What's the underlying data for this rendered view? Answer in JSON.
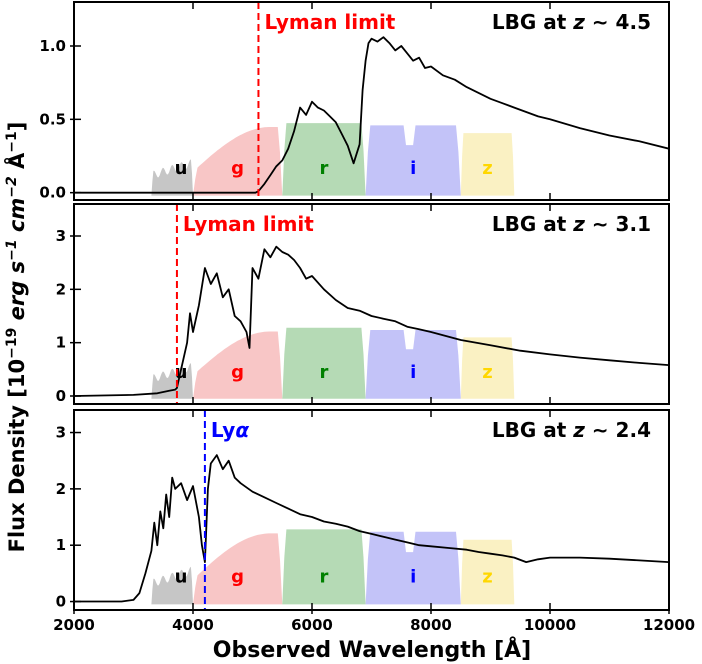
{
  "chart_data": {
    "type": "line",
    "xlabel": "Observed Wavelength [Å]",
    "ylabel": "Flux Density [10⁻¹⁹ erg s⁻¹ cm⁻² Å⁻¹]",
    "xlim": [
      2000,
      12000
    ],
    "x_ticks": [
      2000,
      4000,
      6000,
      8000,
      10000,
      12000
    ],
    "x_tick_labels": [
      "2000",
      "4000",
      "6000",
      "8000",
      "10000",
      "12000"
    ],
    "filter_colors": {
      "u": "#808080",
      "g": "#f08080",
      "r": "#5cad5c",
      "i": "#7b7bf0",
      "z": "#f5e07a"
    },
    "filter_label_colors": {
      "u": "#000000",
      "g": "#ff0000",
      "r": "#008000",
      "i": "#0000ff",
      "z": "#ffd700"
    },
    "panels": [
      {
        "id": "z45",
        "title": "LBG at z ∼ 4.5",
        "title_prefix": "LBG at ",
        "title_z": "z",
        "title_suffix": " ∼ 4.5",
        "ylim": [
          -0.05,
          1.3
        ],
        "y_ticks": [
          0.0,
          0.5,
          1.0
        ],
        "y_tick_labels": [
          "0.0",
          "0.5",
          "1.0"
        ],
        "line_label": "Lyman limit",
        "line_wavelength": 5100,
        "line_color": "#ff0000",
        "filter_scale": 0.52,
        "filter_offset": -0.02,
        "filters": [
          {
            "band": "u",
            "label": "u",
            "range": [
              3300,
              4000
            ],
            "peak": 0.48
          },
          {
            "band": "g",
            "label": "g",
            "range": [
              4000,
              5500
            ],
            "peak": 0.9
          },
          {
            "band": "r",
            "label": "r",
            "range": [
              5500,
              6900
            ],
            "peak": 0.95
          },
          {
            "band": "i",
            "label": "i",
            "range": [
              6900,
              8500
            ],
            "peak": 0.92
          },
          {
            "band": "z",
            "label": "z",
            "range": [
              8500,
              9400
            ],
            "peak": 0.82
          }
        ],
        "spectrum": {
          "x": [
            2000,
            3000,
            4000,
            4800,
            5050,
            5100,
            5200,
            5300,
            5400,
            5500,
            5600,
            5700,
            5800,
            5900,
            6000,
            6100,
            6200,
            6300,
            6400,
            6500,
            6600,
            6700,
            6800,
            6850,
            6900,
            6950,
            7000,
            7100,
            7200,
            7300,
            7400,
            7500,
            7600,
            7700,
            7800,
            7900,
            8000,
            8200,
            8400,
            8600,
            8800,
            9000,
            9200,
            9400,
            9600,
            9800,
            10000,
            10500,
            11000,
            11500,
            12000
          ],
          "y": [
            0.0,
            0.0,
            0.0,
            0.0,
            0.0,
            0.01,
            0.06,
            0.12,
            0.18,
            0.22,
            0.3,
            0.42,
            0.58,
            0.53,
            0.62,
            0.58,
            0.56,
            0.52,
            0.48,
            0.4,
            0.32,
            0.2,
            0.33,
            0.7,
            0.9,
            1.02,
            1.05,
            1.03,
            1.06,
            1.02,
            0.97,
            1.0,
            0.95,
            0.9,
            0.92,
            0.85,
            0.86,
            0.8,
            0.77,
            0.72,
            0.68,
            0.64,
            0.61,
            0.58,
            0.55,
            0.52,
            0.5,
            0.44,
            0.39,
            0.35,
            0.3
          ]
        }
      },
      {
        "id": "z31",
        "title": "LBG at z ∼ 3.1",
        "title_prefix": "LBG at ",
        "title_z": "z",
        "title_suffix": " ∼ 3.1",
        "ylim": [
          -0.15,
          3.6
        ],
        "y_ticks": [
          0,
          1,
          2,
          3
        ],
        "y_tick_labels": [
          "0",
          "1",
          "2",
          "3"
        ],
        "line_label": "Lyman limit",
        "line_wavelength": 3730,
        "line_color": "#ff0000",
        "filter_scale": 1.4,
        "filter_offset": -0.05,
        "filters": [
          {
            "band": "u",
            "label": "u",
            "range": [
              3300,
              4000
            ],
            "peak": 0.48
          },
          {
            "band": "g",
            "label": "g",
            "range": [
              4000,
              5500
            ],
            "peak": 0.9
          },
          {
            "band": "r",
            "label": "r",
            "range": [
              5500,
              6900
            ],
            "peak": 0.95
          },
          {
            "band": "i",
            "label": "i",
            "range": [
              6900,
              8500
            ],
            "peak": 0.92
          },
          {
            "band": "z",
            "label": "z",
            "range": [
              8500,
              9400
            ],
            "peak": 0.82
          }
        ],
        "spectrum": {
          "x": [
            2000,
            3000,
            3400,
            3600,
            3700,
            3730,
            3800,
            3900,
            3950,
            4000,
            4100,
            4200,
            4300,
            4400,
            4500,
            4600,
            4700,
            4800,
            4900,
            4950,
            5000,
            5100,
            5200,
            5300,
            5400,
            5500,
            5600,
            5700,
            5800,
            5900,
            6000,
            6200,
            6400,
            6600,
            6800,
            7000,
            7200,
            7400,
            7600,
            7800,
            8000,
            8500,
            9000,
            9500,
            10000,
            10500,
            11000,
            11500,
            12000
          ],
          "y": [
            0.0,
            0.02,
            0.05,
            0.1,
            0.12,
            0.15,
            0.5,
            1.0,
            1.55,
            1.2,
            1.7,
            2.4,
            2.1,
            2.3,
            1.85,
            2.0,
            1.5,
            1.4,
            1.2,
            0.9,
            2.4,
            2.2,
            2.75,
            2.6,
            2.8,
            2.7,
            2.65,
            2.55,
            2.4,
            2.2,
            2.25,
            2.0,
            1.8,
            1.65,
            1.6,
            1.5,
            1.45,
            1.4,
            1.3,
            1.25,
            1.2,
            1.05,
            0.95,
            0.85,
            0.78,
            0.72,
            0.67,
            0.62,
            0.58
          ]
        }
      },
      {
        "id": "z24",
        "title": "LBG at z ∼ 2.4",
        "title_prefix": "LBG at ",
        "title_z": "z",
        "title_suffix": " ∼ 2.4",
        "ylim": [
          -0.15,
          3.4
        ],
        "y_ticks": [
          0,
          1,
          2,
          3
        ],
        "y_tick_labels": [
          "0",
          "1",
          "2",
          "3"
        ],
        "line_label": "Lyα",
        "line_label_prefix": "Ly",
        "line_label_greek": "α",
        "line_wavelength": 4200,
        "line_color": "#0000ff",
        "filter_scale": 1.4,
        "filter_offset": -0.05,
        "filters": [
          {
            "band": "u",
            "label": "u",
            "range": [
              3300,
              4000
            ],
            "peak": 0.48
          },
          {
            "band": "g",
            "label": "g",
            "range": [
              4000,
              5500
            ],
            "peak": 0.9
          },
          {
            "band": "r",
            "label": "r",
            "range": [
              5500,
              6900
            ],
            "peak": 0.95
          },
          {
            "band": "i",
            "label": "i",
            "range": [
              6900,
              8500
            ],
            "peak": 0.92
          },
          {
            "band": "z",
            "label": "z",
            "range": [
              8500,
              9400
            ],
            "peak": 0.82
          }
        ],
        "spectrum": {
          "x": [
            2000,
            2800,
            3000,
            3100,
            3200,
            3300,
            3350,
            3400,
            3450,
            3500,
            3550,
            3600,
            3650,
            3700,
            3800,
            3900,
            4000,
            4100,
            4150,
            4200,
            4250,
            4300,
            4400,
            4500,
            4600,
            4700,
            4800,
            5000,
            5200,
            5400,
            5600,
            5800,
            6000,
            6200,
            6400,
            6600,
            6800,
            7000,
            7200,
            7400,
            7600,
            7800,
            8000,
            8300,
            8600,
            8800,
            9000,
            9200,
            9400,
            9600,
            9800,
            10000,
            10500,
            11000,
            11500,
            12000
          ],
          "y": [
            0.0,
            0.0,
            0.03,
            0.15,
            0.5,
            0.9,
            1.4,
            1.0,
            1.6,
            1.3,
            1.9,
            1.5,
            2.2,
            2.0,
            2.1,
            1.8,
            2.05,
            1.5,
            1.0,
            0.7,
            2.0,
            2.45,
            2.6,
            2.35,
            2.5,
            2.2,
            2.1,
            1.95,
            1.85,
            1.75,
            1.65,
            1.55,
            1.5,
            1.42,
            1.38,
            1.33,
            1.25,
            1.2,
            1.15,
            1.1,
            1.05,
            1.0,
            0.98,
            0.95,
            0.92,
            0.88,
            0.85,
            0.82,
            0.78,
            0.7,
            0.75,
            0.78,
            0.78,
            0.76,
            0.73,
            0.7
          ]
        }
      }
    ]
  }
}
